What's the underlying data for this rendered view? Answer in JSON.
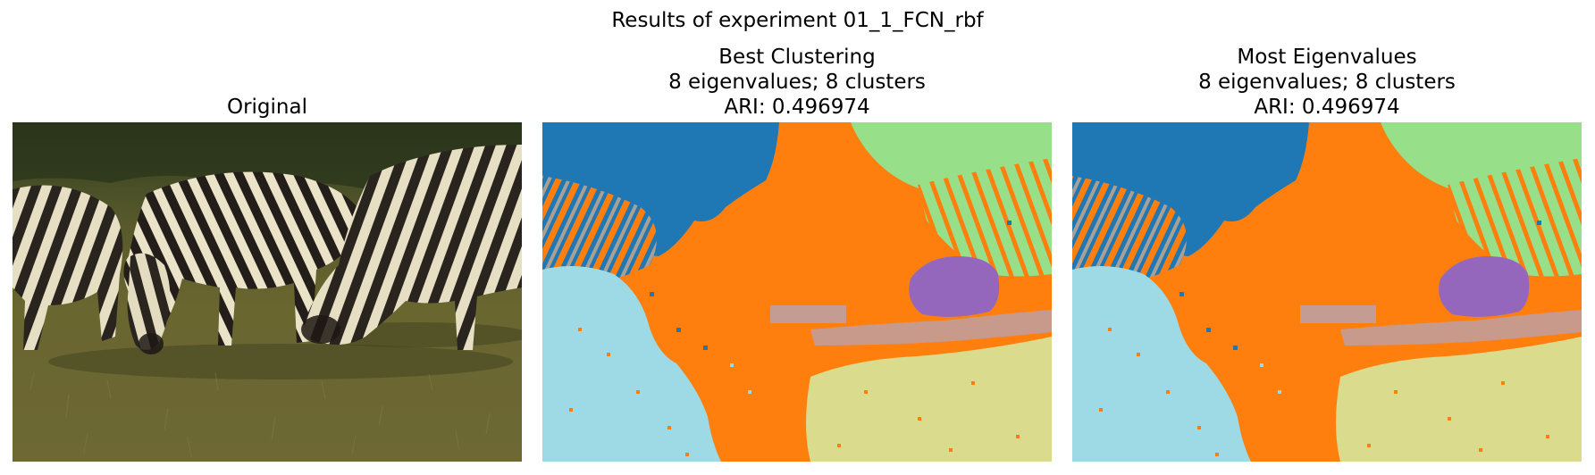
{
  "figure": {
    "suptitle": "Results of experiment 01_1_FCN_rbf"
  },
  "panels": [
    {
      "title_lines": [
        "Original"
      ],
      "kind": "photo"
    },
    {
      "title_lines": [
        "Best Clustering",
        "8 eigenvalues; 8 clusters",
        "ARI: 0.496974"
      ],
      "kind": "segmentation"
    },
    {
      "title_lines": [
        "Most Eigenvalues",
        "8 eigenvalues; 8 clusters",
        "ARI: 0.496974"
      ],
      "kind": "segmentation"
    }
  ],
  "colors": {
    "grass": "#69652f",
    "grass_dark": "#2f3b1d",
    "stripe_light": "#e7dfc4",
    "stripe_dark": "#2a241f",
    "cluster_blue": "#1f77b4",
    "cluster_orange": "#ff7f0e",
    "cluster_lightgreen": "#98df8a",
    "cluster_purple": "#9467bd",
    "cluster_pinkgray": "#c49c94",
    "cluster_lightblue": "#9edae5",
    "cluster_khaki": "#dbdb8d",
    "cluster_gray": "#a89f95"
  }
}
